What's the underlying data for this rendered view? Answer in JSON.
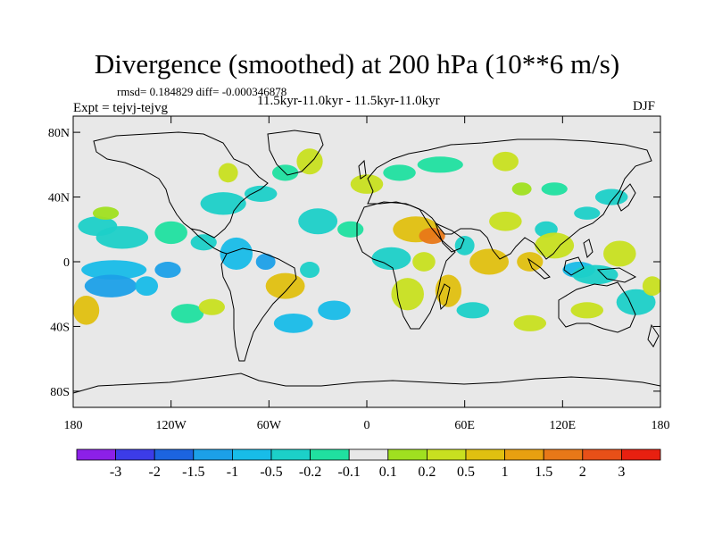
{
  "plot": {
    "title": "Divergence (smoothed) at 200 hPa (10**6 m/s)",
    "stats": "rmsd= 0.184829 diff= -0.000346878",
    "experiment": "Expt = tejvj-tejvg",
    "period": "11.5kyr-11.0kyr - 11.5kyr-11.0kyr",
    "season": "DJF"
  },
  "axes": {
    "lat_ticks": [
      {
        "value": 80,
        "label": "80N"
      },
      {
        "value": 40,
        "label": "40N"
      },
      {
        "value": 0,
        "label": "0"
      },
      {
        "value": -40,
        "label": "40S"
      },
      {
        "value": -80,
        "label": "80S"
      }
    ],
    "lon_ticks": [
      {
        "value": -180,
        "label": "180"
      },
      {
        "value": -120,
        "label": "120W"
      },
      {
        "value": -60,
        "label": "60W"
      },
      {
        "value": 0,
        "label": "0"
      },
      {
        "value": 60,
        "label": "60E"
      },
      {
        "value": 120,
        "label": "120E"
      },
      {
        "value": 180,
        "label": "180"
      }
    ],
    "lat_range": [
      -90,
      90
    ],
    "lon_range": [
      -180,
      180
    ]
  },
  "colorbar": {
    "colors": [
      "#8c20e8",
      "#3c3ce8",
      "#1c64e0",
      "#1ca0e8",
      "#18bce8",
      "#1cd0c8",
      "#20e0a0",
      "#e8e8e8",
      "#a0e020",
      "#c8e020",
      "#e0c010",
      "#e8a010",
      "#e87818",
      "#e85018",
      "#e82010"
    ],
    "labels": [
      "-3",
      "-2",
      "-1.5",
      "-1",
      "-0.5",
      "-0.2",
      "-0.1",
      "0.1",
      "0.2",
      "0.5",
      "1",
      "1.5",
      "2",
      "3"
    ]
  },
  "field": {
    "background_color": "#e8e8e8",
    "land_line_color": "#000000",
    "blobs": [
      {
        "lon": -165,
        "lat": 22,
        "rx": 12,
        "ry": 6,
        "level": 5
      },
      {
        "lon": -150,
        "lat": 15,
        "rx": 16,
        "ry": 7,
        "level": 5
      },
      {
        "lon": -120,
        "lat": 18,
        "rx": 10,
        "ry": 7,
        "level": 6
      },
      {
        "lon": -100,
        "lat": 12,
        "rx": 8,
        "ry": 5,
        "level": 5
      },
      {
        "lon": -155,
        "lat": -5,
        "rx": 20,
        "ry": 6,
        "level": 4
      },
      {
        "lon": -122,
        "lat": -5,
        "rx": 8,
        "ry": 5,
        "level": 3
      },
      {
        "lon": -157,
        "lat": -15,
        "rx": 16,
        "ry": 7,
        "level": 3
      },
      {
        "lon": -135,
        "lat": -15,
        "rx": 7,
        "ry": 6,
        "level": 4
      },
      {
        "lon": -172,
        "lat": -30,
        "rx": 8,
        "ry": 9,
        "level": 10
      },
      {
        "lon": -110,
        "lat": -32,
        "rx": 10,
        "ry": 6,
        "level": 6
      },
      {
        "lon": -95,
        "lat": -28,
        "rx": 8,
        "ry": 5,
        "level": 9
      },
      {
        "lon": -160,
        "lat": 30,
        "rx": 8,
        "ry": 4,
        "level": 8
      },
      {
        "lon": -80,
        "lat": 5,
        "rx": 10,
        "ry": 10,
        "level": 4
      },
      {
        "lon": -62,
        "lat": 0,
        "rx": 6,
        "ry": 5,
        "level": 3
      },
      {
        "lon": -50,
        "lat": -15,
        "rx": 12,
        "ry": 8,
        "level": 10
      },
      {
        "lon": -35,
        "lat": -5,
        "rx": 6,
        "ry": 5,
        "level": 5
      },
      {
        "lon": -45,
        "lat": -38,
        "rx": 12,
        "ry": 6,
        "level": 4
      },
      {
        "lon": -20,
        "lat": -30,
        "rx": 10,
        "ry": 6,
        "level": 4
      },
      {
        "lon": -88,
        "lat": 36,
        "rx": 14,
        "ry": 7,
        "level": 5
      },
      {
        "lon": -65,
        "lat": 42,
        "rx": 10,
        "ry": 5,
        "level": 5
      },
      {
        "lon": -85,
        "lat": 55,
        "rx": 6,
        "ry": 6,
        "level": 9
      },
      {
        "lon": -50,
        "lat": 55,
        "rx": 8,
        "ry": 5,
        "level": 6
      },
      {
        "lon": -35,
        "lat": 62,
        "rx": 8,
        "ry": 8,
        "level": 9
      },
      {
        "lon": -30,
        "lat": 25,
        "rx": 12,
        "ry": 8,
        "level": 5
      },
      {
        "lon": -10,
        "lat": 20,
        "rx": 8,
        "ry": 5,
        "level": 6
      },
      {
        "lon": 0,
        "lat": 48,
        "rx": 10,
        "ry": 6,
        "level": 9
      },
      {
        "lon": 20,
        "lat": 55,
        "rx": 10,
        "ry": 5,
        "level": 6
      },
      {
        "lon": 45,
        "lat": 60,
        "rx": 14,
        "ry": 5,
        "level": 6
      },
      {
        "lon": 85,
        "lat": 62,
        "rx": 8,
        "ry": 6,
        "level": 9
      },
      {
        "lon": 30,
        "lat": 20,
        "rx": 14,
        "ry": 8,
        "level": 10
      },
      {
        "lon": 40,
        "lat": 16,
        "rx": 8,
        "ry": 5,
        "level": 12
      },
      {
        "lon": 15,
        "lat": 2,
        "rx": 12,
        "ry": 7,
        "level": 5
      },
      {
        "lon": 35,
        "lat": 0,
        "rx": 7,
        "ry": 6,
        "level": 9
      },
      {
        "lon": 25,
        "lat": -20,
        "rx": 10,
        "ry": 10,
        "level": 9
      },
      {
        "lon": 50,
        "lat": -18,
        "rx": 8,
        "ry": 10,
        "level": 10
      },
      {
        "lon": 60,
        "lat": 10,
        "rx": 6,
        "ry": 6,
        "level": 5
      },
      {
        "lon": 75,
        "lat": 0,
        "rx": 12,
        "ry": 8,
        "level": 10
      },
      {
        "lon": 65,
        "lat": -30,
        "rx": 10,
        "ry": 5,
        "level": 5
      },
      {
        "lon": 85,
        "lat": 25,
        "rx": 10,
        "ry": 6,
        "level": 9
      },
      {
        "lon": 110,
        "lat": 20,
        "rx": 7,
        "ry": 5,
        "level": 5
      },
      {
        "lon": 115,
        "lat": 10,
        "rx": 12,
        "ry": 8,
        "level": 9
      },
      {
        "lon": 100,
        "lat": 0,
        "rx": 8,
        "ry": 6,
        "level": 10
      },
      {
        "lon": 130,
        "lat": -5,
        "rx": 10,
        "ry": 5,
        "level": 4
      },
      {
        "lon": 140,
        "lat": -8,
        "rx": 14,
        "ry": 6,
        "level": 5
      },
      {
        "lon": 155,
        "lat": 5,
        "rx": 10,
        "ry": 8,
        "level": 9
      },
      {
        "lon": 165,
        "lat": -25,
        "rx": 12,
        "ry": 8,
        "level": 5
      },
      {
        "lon": 175,
        "lat": -15,
        "rx": 6,
        "ry": 6,
        "level": 9
      },
      {
        "lon": 135,
        "lat": 30,
        "rx": 8,
        "ry": 4,
        "level": 5
      },
      {
        "lon": 150,
        "lat": 40,
        "rx": 10,
        "ry": 5,
        "level": 5
      },
      {
        "lon": 115,
        "lat": 45,
        "rx": 8,
        "ry": 4,
        "level": 6
      },
      {
        "lon": 95,
        "lat": 45,
        "rx": 6,
        "ry": 4,
        "level": 8
      },
      {
        "lon": 135,
        "lat": -30,
        "rx": 10,
        "ry": 5,
        "level": 9
      },
      {
        "lon": 100,
        "lat": -38,
        "rx": 10,
        "ry": 5,
        "level": 9
      }
    ]
  }
}
